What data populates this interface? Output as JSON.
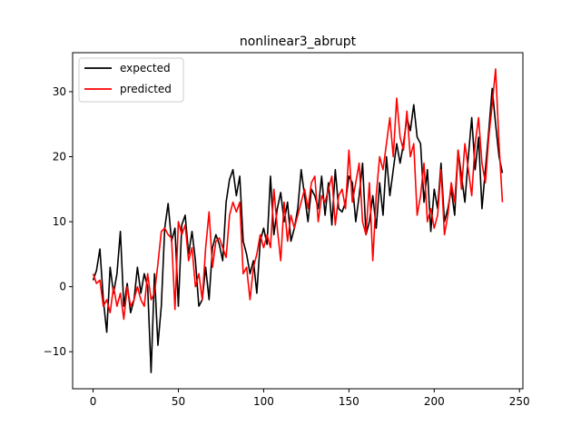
{
  "chart_data": {
    "type": "line",
    "title": "nonlinear3_abrupt",
    "xlabel": "",
    "ylabel": "",
    "xlim": [
      -12,
      252
    ],
    "ylim": [
      -15.7,
      36.0
    ],
    "xticks": [
      0,
      50,
      100,
      150,
      200,
      250
    ],
    "yticks": [
      -10,
      0,
      10,
      20,
      30
    ],
    "grid": false,
    "legend_position": "top-left",
    "series": [
      {
        "name": "expected",
        "color": "#000000",
        "x": [
          0,
          2,
          4,
          6,
          8,
          10,
          12,
          14,
          16,
          18,
          20,
          22,
          24,
          26,
          28,
          30,
          32,
          34,
          36,
          38,
          40,
          42,
          44,
          46,
          48,
          50,
          52,
          54,
          56,
          58,
          60,
          62,
          64,
          66,
          68,
          70,
          72,
          74,
          76,
          78,
          80,
          82,
          84,
          86,
          88,
          90,
          92,
          94,
          96,
          98,
          100,
          102,
          104,
          106,
          108,
          110,
          112,
          114,
          116,
          118,
          120,
          122,
          124,
          126,
          128,
          130,
          132,
          134,
          136,
          138,
          140,
          142,
          144,
          146,
          148,
          150,
          152,
          154,
          156,
          158,
          160,
          162,
          164,
          166,
          168,
          170,
          172,
          174,
          176,
          178,
          180,
          182,
          184,
          186,
          188,
          190,
          192,
          194,
          196,
          198,
          200,
          202,
          204,
          206,
          208,
          210,
          212,
          214,
          216,
          218,
          220,
          222,
          224,
          226,
          228,
          230,
          232,
          234,
          236,
          238,
          240
        ],
        "values": [
          1.0,
          2.5,
          5.8,
          -2.0,
          -7.0,
          3.0,
          -1.0,
          2.0,
          8.5,
          -3.0,
          0.5,
          -4.0,
          -2.0,
          3.0,
          -1.0,
          2.0,
          0.0,
          -13.2,
          2.0,
          -9.0,
          -3.0,
          9.0,
          12.8,
          7.0,
          9.0,
          -3.0,
          9.5,
          11.0,
          5.0,
          8.5,
          4.0,
          -3.0,
          -2.0,
          3.0,
          -2.0,
          6.0,
          8.0,
          6.5,
          4.0,
          13.0,
          16.5,
          18.0,
          14.0,
          17.0,
          7.0,
          5.0,
          2.0,
          4.0,
          -1.0,
          7.0,
          9.0,
          6.5,
          17.0,
          8.0,
          12.0,
          14.5,
          10.0,
          13.0,
          7.0,
          9.0,
          12.0,
          18.0,
          14.0,
          10.0,
          15.0,
          14.0,
          12.0,
          17.0,
          11.0,
          16.0,
          9.5,
          18.0,
          12.0,
          11.5,
          13.0,
          17.0,
          16.0,
          10.0,
          14.0,
          19.0,
          8.0,
          10.0,
          14.0,
          9.0,
          16.0,
          11.0,
          20.0,
          14.0,
          18.0,
          22.0,
          19.0,
          22.0,
          26.0,
          24.0,
          28.0,
          23.0,
          22.0,
          13.0,
          18.0,
          8.5,
          15.0,
          12.0,
          19.0,
          10.0,
          12.0,
          15.0,
          11.0,
          21.0,
          17.0,
          13.0,
          20.0,
          26.0,
          18.0,
          23.0,
          12.0,
          18.0,
          24.0,
          30.5,
          25.0,
          20.0,
          17.5
        ],
        "note_unused": ""
      },
      {
        "name": "predicted",
        "color": "#ff0000",
        "x": [
          0,
          2,
          4,
          6,
          8,
          10,
          12,
          14,
          16,
          18,
          20,
          22,
          24,
          26,
          28,
          30,
          32,
          34,
          36,
          38,
          40,
          42,
          44,
          46,
          48,
          50,
          52,
          54,
          56,
          58,
          60,
          62,
          64,
          66,
          68,
          70,
          72,
          74,
          76,
          78,
          80,
          82,
          84,
          86,
          88,
          90,
          92,
          94,
          96,
          98,
          100,
          102,
          104,
          106,
          108,
          110,
          112,
          114,
          116,
          118,
          120,
          122,
          124,
          126,
          128,
          130,
          132,
          134,
          136,
          138,
          140,
          142,
          144,
          146,
          148,
          150,
          152,
          154,
          156,
          158,
          160,
          162,
          164,
          166,
          168,
          170,
          172,
          174,
          176,
          178,
          180,
          182,
          184,
          186,
          188,
          190,
          192,
          194,
          196,
          198,
          200,
          202,
          204,
          206,
          208,
          210,
          212,
          214,
          216,
          218,
          220,
          222,
          224,
          226,
          228,
          230,
          232,
          234,
          236,
          238,
          240
        ],
        "values": [
          2.0,
          0.5,
          1.0,
          -3.0,
          -2.0,
          -4.0,
          0.0,
          -3.0,
          -1.0,
          -5.0,
          0.0,
          -3.0,
          -2.0,
          0.0,
          -2.0,
          -3.0,
          2.0,
          -2.0,
          -1.0,
          3.5,
          8.5,
          9.0,
          8.0,
          7.5,
          -3.5,
          10.0,
          8.0,
          9.5,
          4.0,
          6.0,
          0.0,
          2.0,
          -2.0,
          6.0,
          11.5,
          3.0,
          7.0,
          7.5,
          6.0,
          4.5,
          11.0,
          13.0,
          11.5,
          13.0,
          2.0,
          3.0,
          -2.0,
          3.0,
          5.0,
          8.0,
          6.0,
          8.0,
          6.0,
          15.0,
          9.0,
          4.0,
          13.0,
          7.0,
          11.0,
          9.0,
          11.0,
          13.0,
          15.0,
          12.0,
          16.0,
          17.0,
          10.0,
          14.0,
          13.0,
          15.0,
          17.0,
          9.5,
          14.0,
          15.0,
          12.0,
          21.0,
          13.0,
          16.0,
          19.0,
          10.0,
          8.0,
          16.0,
          4.0,
          14.0,
          20.0,
          18.0,
          22.0,
          26.0,
          20.0,
          29.0,
          23.0,
          21.0,
          27.0,
          20.0,
          22.0,
          11.0,
          14.0,
          19.0,
          10.0,
          12.0,
          9.0,
          11.0,
          18.0,
          8.0,
          11.0,
          16.0,
          13.0,
          21.0,
          15.0,
          22.0,
          18.0,
          14.0,
          22.0,
          26.0,
          19.0,
          16.0,
          23.0,
          28.0,
          33.5,
          22.0,
          13.0
        ]
      }
    ]
  }
}
